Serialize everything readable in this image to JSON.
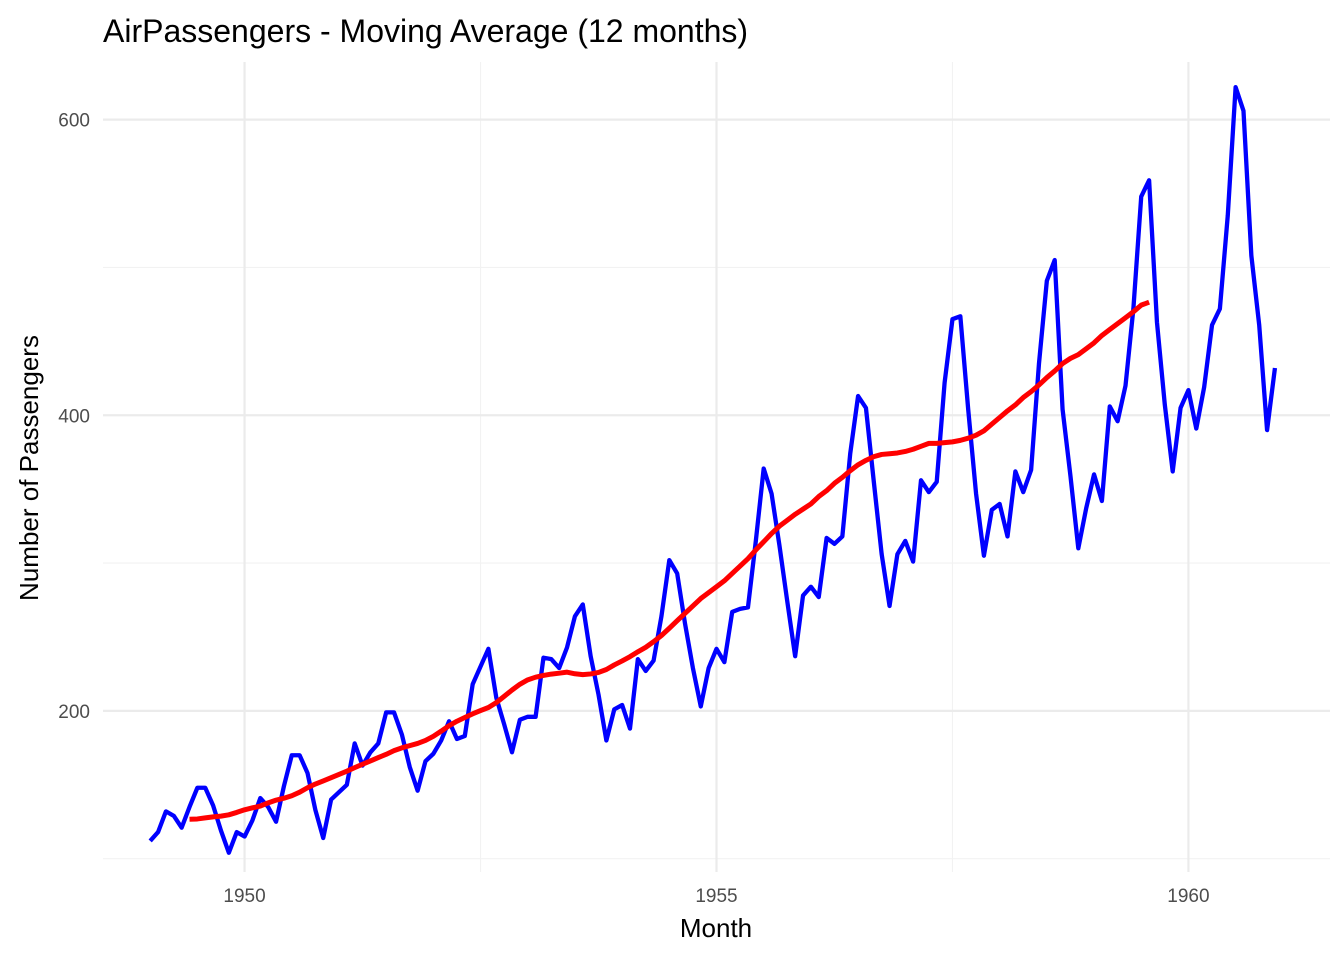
{
  "chart_data": {
    "type": "line",
    "title": "AirPassengers - Moving Average (12 months)",
    "xlabel": "Month",
    "ylabel": "Number of Passengers",
    "x_ticks": [
      1950,
      1955,
      1960
    ],
    "y_ticks": [
      200,
      400,
      600
    ],
    "xlim": [
      1948.5,
      1961.5
    ],
    "ylim": [
      91,
      639
    ],
    "grid": true,
    "legend": "none",
    "series": [
      {
        "color": "#0000ff",
        "x_start": 1949.0,
        "x_step": 0.08333333,
        "values": [
          112,
          118,
          132,
          129,
          121,
          135,
          148,
          148,
          136,
          119,
          104,
          118,
          115,
          126,
          141,
          135,
          125,
          149,
          170,
          170,
          158,
          133,
          114,
          140,
          145,
          150,
          178,
          163,
          172,
          178,
          199,
          199,
          184,
          162,
          146,
          166,
          171,
          180,
          193,
          181,
          183,
          218,
          230,
          242,
          209,
          191,
          172,
          194,
          196,
          196,
          236,
          235,
          229,
          243,
          264,
          272,
          237,
          211,
          180,
          201,
          204,
          188,
          235,
          227,
          234,
          264,
          302,
          293,
          259,
          229,
          203,
          229,
          242,
          233,
          267,
          269,
          270,
          315,
          364,
          347,
          312,
          274,
          237,
          278,
          284,
          277,
          317,
          313,
          318,
          374,
          413,
          405,
          355,
          306,
          271,
          306,
          315,
          301,
          356,
          348,
          355,
          422,
          465,
          467,
          404,
          347,
          305,
          336,
          340,
          318,
          362,
          348,
          363,
          435,
          491,
          505,
          404,
          359,
          310,
          337,
          360,
          342,
          406,
          396,
          420,
          472,
          548,
          559,
          463,
          407,
          362,
          405,
          417,
          391,
          419,
          461,
          472,
          535,
          622,
          606,
          508,
          461,
          390,
          432
        ]
      },
      {
        "color": "#ff0000",
        "x_start": 1949.4167,
        "x_step": 0.08333333,
        "values": [
          126.7,
          126.9,
          127.6,
          128.3,
          128.8,
          129.7,
          131.3,
          133.1,
          134.4,
          135.6,
          137.8,
          139.6,
          140.9,
          142.6,
          145.0,
          148.0,
          150.5,
          152.6,
          154.8,
          157.0,
          159.2,
          161.6,
          163.9,
          166.1,
          168.4,
          170.6,
          173.1,
          175.0,
          176.5,
          178.0,
          180.0,
          182.8,
          186.3,
          190.0,
          193.0,
          195.5,
          198.0,
          200.2,
          202.3,
          205.6,
          209.8,
          214.1,
          218.0,
          221.0,
          222.8,
          224.0,
          224.9,
          225.5,
          226.2,
          225.1,
          224.5,
          225.0,
          226.0,
          228.0,
          231.1,
          233.8,
          236.7,
          240.0,
          243.0,
          246.8,
          251.0,
          255.9,
          261.0,
          266.0,
          271.0,
          276.0,
          280.0,
          284.0,
          288.0,
          293.0,
          298.0,
          303.0,
          308.9,
          314.4,
          320.0,
          325.0,
          329.0,
          333.0,
          336.5,
          340.0,
          345.0,
          349.0,
          354.0,
          358.0,
          362.5,
          366.5,
          369.5,
          372.0,
          373.5,
          374.0,
          374.5,
          375.5,
          377.0,
          379.0,
          381.0,
          381.0,
          381.5,
          382.0,
          383.0,
          384.5,
          386.5,
          389.5,
          394.0,
          398.5,
          403.0,
          407.0,
          412.0,
          416.0,
          420.5,
          425.5,
          430.0,
          435.0,
          438.5,
          441.0,
          445.0,
          449.0,
          454.0,
          458.0,
          462.0,
          466.0,
          470.0,
          474.5,
          476.5
        ]
      }
    ]
  }
}
